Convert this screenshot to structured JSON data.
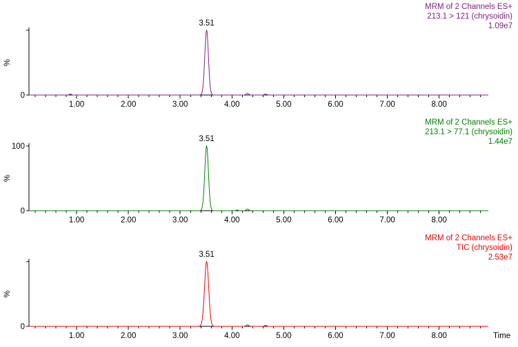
{
  "background_color": "#FFFFFF",
  "axis_color": "#000000",
  "chart_data": [
    {
      "type": "line",
      "annotation_lines": [
        "MRM of 2 Channels ES+",
        "213.1 > 121 (chrysoidin)",
        "1.09e7"
      ],
      "trace_color": "#7B2183",
      "peak": {
        "time": 3.51,
        "label": "3.51",
        "height_pct": 100,
        "sigma": 0.035,
        "intensity": "1.09e7"
      },
      "minor_peaks": [
        {
          "time": 0.88,
          "height_pct": 1.5,
          "sigma": 0.02
        },
        {
          "time": 4.3,
          "height_pct": 2.4,
          "sigma": 0.025
        },
        {
          "time": 4.65,
          "height_pct": 1.6,
          "sigma": 0.02
        }
      ],
      "x_range": [
        0.08,
        8.95
      ],
      "x_major_ticks": [
        1,
        2,
        3,
        4,
        5,
        6,
        7,
        8
      ],
      "x_tick_labels": [
        "1.00",
        "2.00",
        "3.00",
        "4.00",
        "5.00",
        "6.00",
        "7.00",
        "8.00"
      ],
      "ylabel": "%",
      "y_axis_labels": {
        "top": "",
        "bottom": "0"
      },
      "x_axis_title": ""
    },
    {
      "type": "line",
      "annotation_lines": [
        "MRM of 2 Channels ES+",
        "213.1 > 77.1 (chrysoidin)",
        "1.44e7"
      ],
      "trace_color": "#008000",
      "peak": {
        "time": 3.51,
        "label": "3.51",
        "height_pct": 100,
        "sigma": 0.035,
        "intensity": "1.44e7"
      },
      "minor_peaks": [
        {
          "time": 4.3,
          "height_pct": 2.4,
          "sigma": 0.025
        },
        {
          "time": 4.1,
          "height_pct": 1.0,
          "sigma": 0.02
        }
      ],
      "x_range": [
        0.08,
        8.95
      ],
      "x_major_ticks": [
        1,
        2,
        3,
        4,
        5,
        6,
        7,
        8
      ],
      "x_tick_labels": [
        "1.00",
        "2.00",
        "3.00",
        "4.00",
        "5.00",
        "6.00",
        "7.00",
        "8.00"
      ],
      "ylabel": "%",
      "y_axis_labels": {
        "top": "100",
        "bottom": "0"
      },
      "x_axis_title": ""
    },
    {
      "type": "line",
      "annotation_lines": [
        "MRM of 2 Channels ES+",
        "TIC (chrysoidin)",
        "2.53e7"
      ],
      "trace_color": "#EE0000",
      "peak": {
        "time": 3.51,
        "label": "3.51",
        "height_pct": 100,
        "sigma": 0.04,
        "intensity": "2.53e7"
      },
      "minor_peaks": [
        {
          "time": 4.3,
          "height_pct": 2.2,
          "sigma": 0.025
        },
        {
          "time": 4.65,
          "height_pct": 1.5,
          "sigma": 0.02
        }
      ],
      "x_range": [
        0.08,
        8.95
      ],
      "x_major_ticks": [
        1,
        2,
        3,
        4,
        5,
        6,
        7,
        8
      ],
      "x_tick_labels": [
        "1.00",
        "2.00",
        "3.00",
        "4.00",
        "5.00",
        "6.00",
        "7.00",
        "8.00"
      ],
      "ylabel": "%",
      "y_axis_labels": {
        "top": "",
        "bottom": "0"
      },
      "x_axis_title": "Time"
    }
  ]
}
